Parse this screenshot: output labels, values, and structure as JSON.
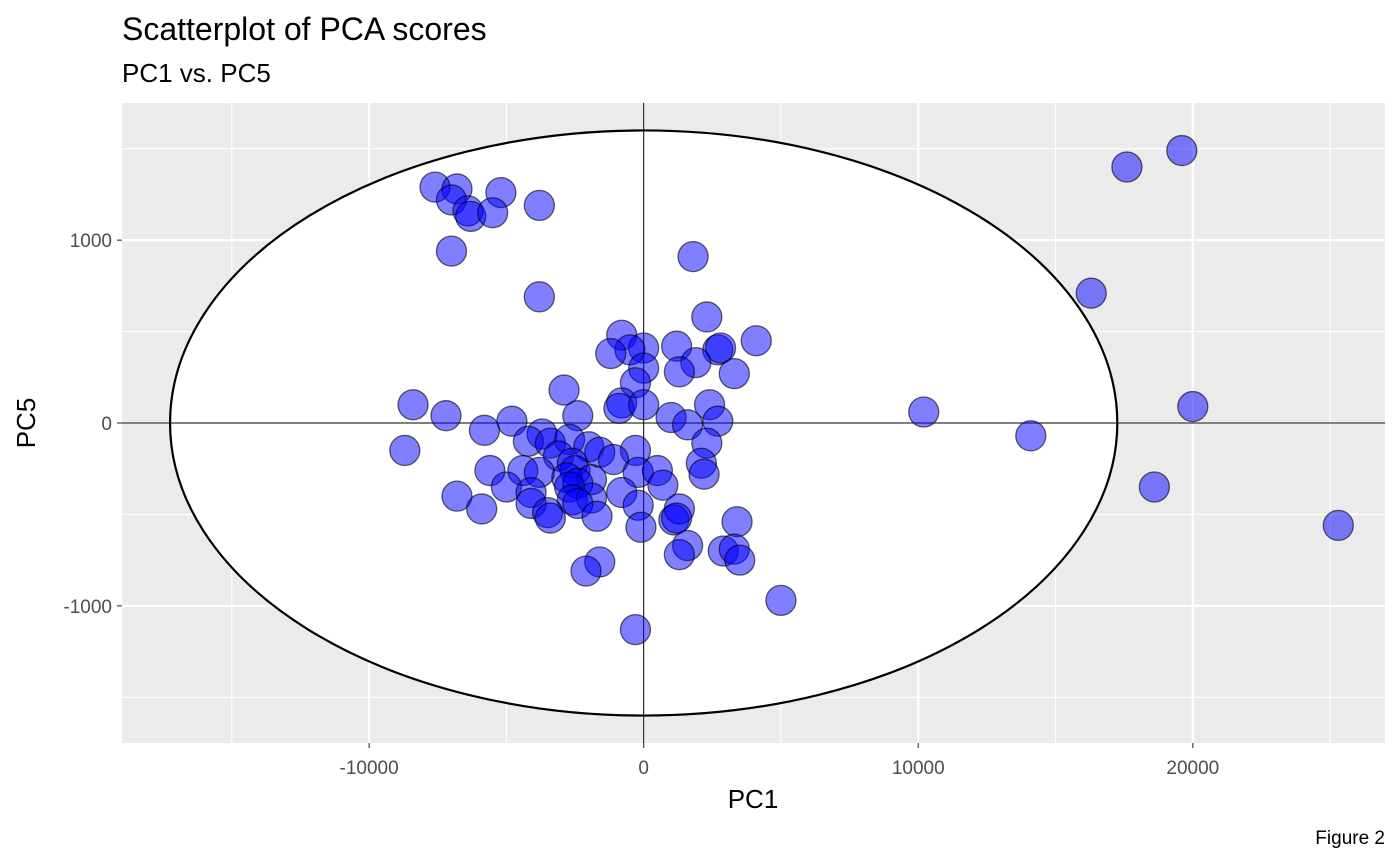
{
  "chart_data": {
    "type": "scatter",
    "title": "Scatterplot of PCA scores",
    "subtitle": "PC1 vs. PC5",
    "xlabel": "PC1",
    "ylabel": "PC5",
    "caption": "Figure 2",
    "xlim": [
      -19000,
      27000
    ],
    "ylim": [
      -1750,
      1750
    ],
    "x_ticks": [
      -10000,
      0,
      10000,
      20000
    ],
    "x_tick_labels": [
      "-10000",
      "0",
      "10000",
      "20000"
    ],
    "y_ticks": [
      -1000,
      0,
      1000
    ],
    "y_tick_labels": [
      "-1000",
      "0",
      "1000"
    ],
    "grid": true,
    "colors": {
      "panel_background": "#ebebeb",
      "grid": "#ffffff",
      "point_fill": "#0000ff",
      "point_fill_opacity": 0.5,
      "point_stroke": "#000000",
      "ellipse_fill": "#ffffff",
      "ellipse_stroke": "#000000"
    },
    "ellipse": {
      "center": [
        0,
        0
      ],
      "rx": 17250,
      "ry": 1600
    },
    "reference_lines": {
      "x": 0,
      "y": 0
    },
    "points": [
      {
        "x": -7600,
        "y": 1290
      },
      {
        "x": -6800,
        "y": 1280
      },
      {
        "x": -7000,
        "y": 1220
      },
      {
        "x": -6400,
        "y": 1160
      },
      {
        "x": -6300,
        "y": 1130
      },
      {
        "x": -5200,
        "y": 1260
      },
      {
        "x": -5500,
        "y": 1150
      },
      {
        "x": -3800,
        "y": 1190
      },
      {
        "x": -7000,
        "y": 940
      },
      {
        "x": -3800,
        "y": 690
      },
      {
        "x": 1800,
        "y": 910
      },
      {
        "x": 2300,
        "y": 580
      },
      {
        "x": -800,
        "y": 480
      },
      {
        "x": 4100,
        "y": 450
      },
      {
        "x": 1200,
        "y": 420
      },
      {
        "x": 0,
        "y": 410
      },
      {
        "x": 2700,
        "y": 400
      },
      {
        "x": 2800,
        "y": 410
      },
      {
        "x": -500,
        "y": 400
      },
      {
        "x": -1200,
        "y": 380
      },
      {
        "x": 1900,
        "y": 330
      },
      {
        "x": 1300,
        "y": 280
      },
      {
        "x": 0,
        "y": 300
      },
      {
        "x": 3300,
        "y": 270
      },
      {
        "x": -300,
        "y": 220
      },
      {
        "x": -2900,
        "y": 180
      },
      {
        "x": -8400,
        "y": 100
      },
      {
        "x": -800,
        "y": 110
      },
      {
        "x": -900,
        "y": 80
      },
      {
        "x": 0,
        "y": 100
      },
      {
        "x": 2400,
        "y": 100
      },
      {
        "x": -7200,
        "y": 40
      },
      {
        "x": -2400,
        "y": 40
      },
      {
        "x": 1000,
        "y": 30
      },
      {
        "x": 2700,
        "y": 10
      },
      {
        "x": -4800,
        "y": 10
      },
      {
        "x": 1600,
        "y": -10
      },
      {
        "x": -5800,
        "y": -40
      },
      {
        "x": -3700,
        "y": -60
      },
      {
        "x": -4200,
        "y": -100
      },
      {
        "x": -3400,
        "y": -110
      },
      {
        "x": -2700,
        "y": -90
      },
      {
        "x": -2000,
        "y": -130
      },
      {
        "x": -1600,
        "y": -160
      },
      {
        "x": -300,
        "y": -150
      },
      {
        "x": 2300,
        "y": -110
      },
      {
        "x": -8700,
        "y": -150
      },
      {
        "x": -3100,
        "y": -180
      },
      {
        "x": -2600,
        "y": -220
      },
      {
        "x": -1100,
        "y": -200
      },
      {
        "x": 2100,
        "y": -220
      },
      {
        "x": -5600,
        "y": -260
      },
      {
        "x": -4400,
        "y": -260
      },
      {
        "x": -3800,
        "y": -270
      },
      {
        "x": -2500,
        "y": -260
      },
      {
        "x": -200,
        "y": -270
      },
      {
        "x": 500,
        "y": -260
      },
      {
        "x": 2200,
        "y": -280
      },
      {
        "x": -2800,
        "y": -300
      },
      {
        "x": -1900,
        "y": -310
      },
      {
        "x": -2400,
        "y": -330
      },
      {
        "x": 700,
        "y": -340
      },
      {
        "x": -5000,
        "y": -350
      },
      {
        "x": -2700,
        "y": -350
      },
      {
        "x": -6800,
        "y": -400
      },
      {
        "x": -4100,
        "y": -380
      },
      {
        "x": -800,
        "y": -380
      },
      {
        "x": -2600,
        "y": -420
      },
      {
        "x": -1900,
        "y": -410
      },
      {
        "x": -4100,
        "y": -440
      },
      {
        "x": -3500,
        "y": -490
      },
      {
        "x": -2400,
        "y": -440
      },
      {
        "x": -5900,
        "y": -470
      },
      {
        "x": -200,
        "y": -450
      },
      {
        "x": -1700,
        "y": -510
      },
      {
        "x": -3400,
        "y": -520
      },
      {
        "x": 1100,
        "y": -530
      },
      {
        "x": 1300,
        "y": -470
      },
      {
        "x": 1200,
        "y": -520
      },
      {
        "x": 3400,
        "y": -540
      },
      {
        "x": -100,
        "y": -570
      },
      {
        "x": 1600,
        "y": -670
      },
      {
        "x": 2900,
        "y": -700
      },
      {
        "x": 3300,
        "y": -690
      },
      {
        "x": 1300,
        "y": -720
      },
      {
        "x": 3500,
        "y": -750
      },
      {
        "x": -1600,
        "y": -760
      },
      {
        "x": -2100,
        "y": -810
      },
      {
        "x": 5000,
        "y": -970
      },
      {
        "x": -300,
        "y": -1130
      },
      {
        "x": 10200,
        "y": 60
      },
      {
        "x": 14100,
        "y": -70
      },
      {
        "x": 16300,
        "y": 710
      },
      {
        "x": 17600,
        "y": 1400
      },
      {
        "x": 19600,
        "y": 1490
      },
      {
        "x": 20000,
        "y": 90
      },
      {
        "x": 18600,
        "y": -350
      },
      {
        "x": 25300,
        "y": -560
      }
    ]
  }
}
